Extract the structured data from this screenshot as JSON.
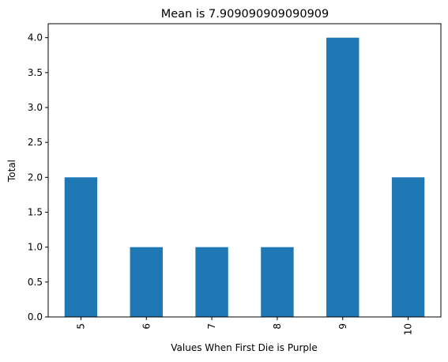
{
  "chart_data": {
    "type": "bar",
    "title": "Mean is 7.909090909090909",
    "xlabel": "Values When First Die is Purple",
    "ylabel": "Total",
    "categories": [
      "5",
      "6",
      "7",
      "8",
      "9",
      "10"
    ],
    "values": [
      2.0,
      1.0,
      1.0,
      1.0,
      4.0,
      2.0
    ],
    "ylim": [
      0.0,
      4.2
    ],
    "yticks": [
      "0.0",
      "0.5",
      "1.0",
      "1.5",
      "2.0",
      "2.5",
      "3.0",
      "3.5",
      "4.0"
    ],
    "grid": false,
    "legend": "none",
    "bar_color": "#1f77b4"
  }
}
